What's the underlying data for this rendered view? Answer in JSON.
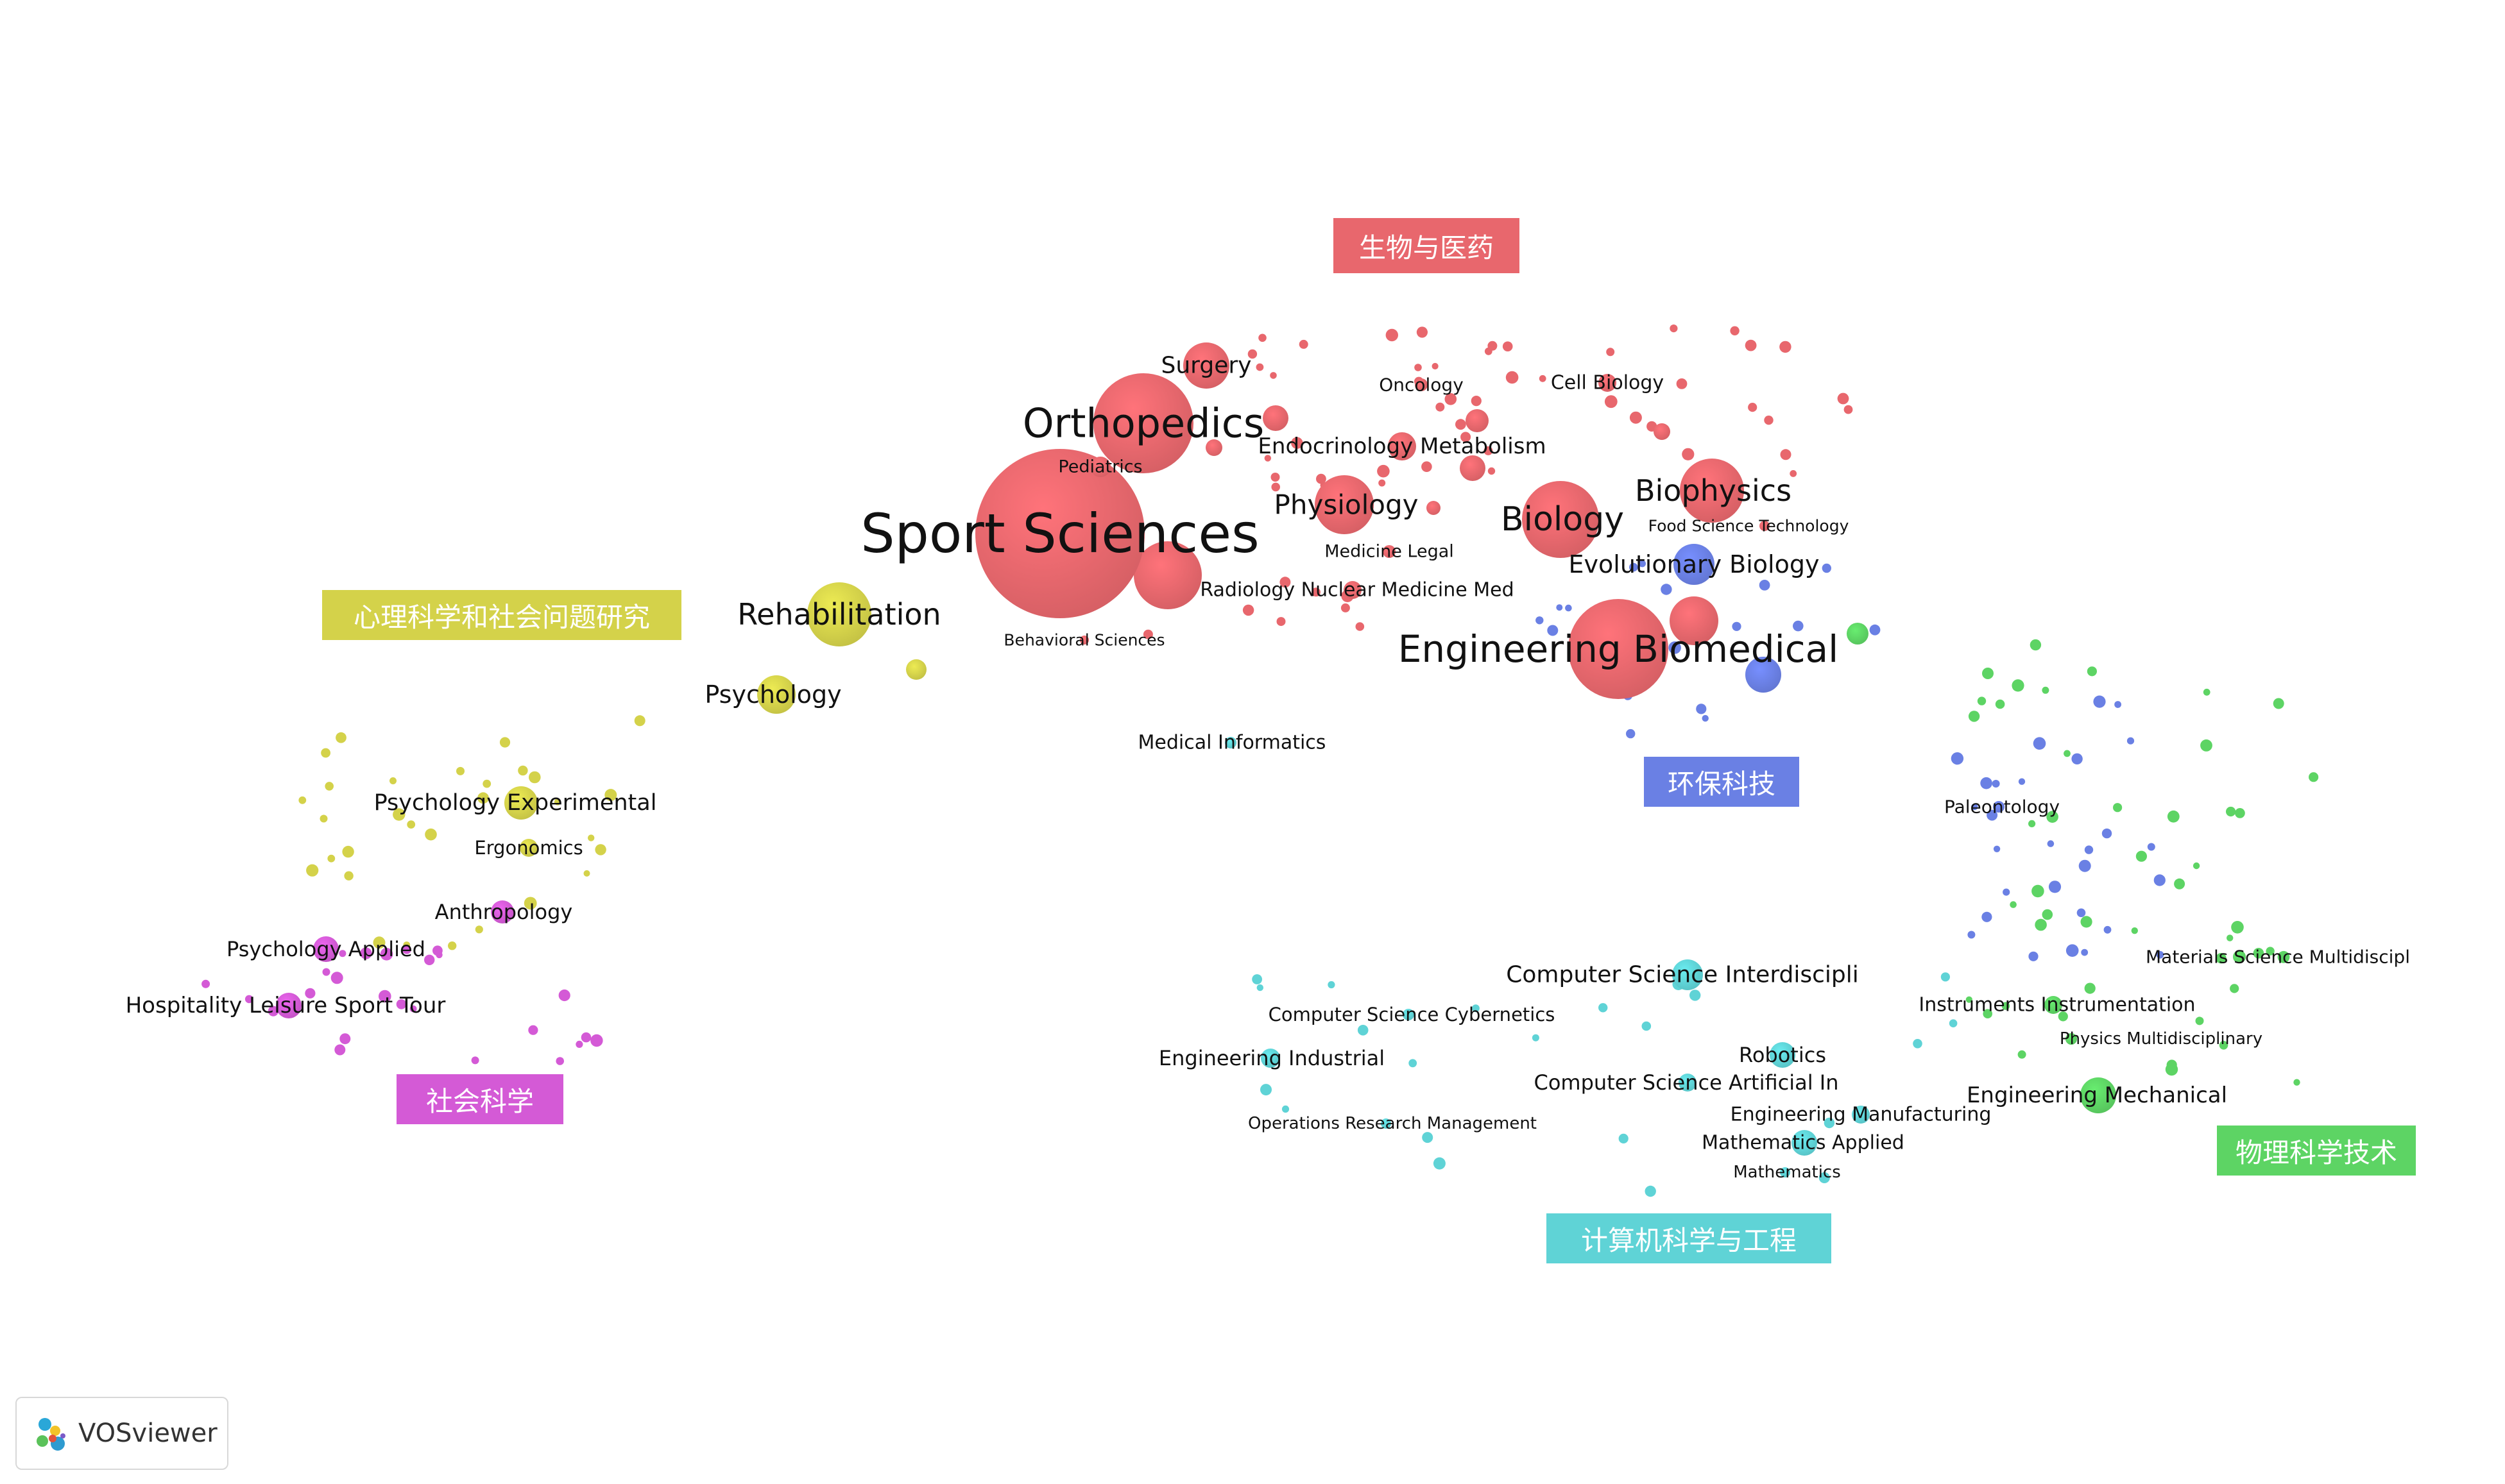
{
  "colors": {
    "red": "#e8676d",
    "yellow": "#d4d24a",
    "purple": "#d45ad6",
    "blue": "#6a80e4",
    "cyan": "#5fd3d6",
    "green": "#5dd464"
  },
  "clusters": [
    {
      "id": "bio",
      "label": "生物与医药",
      "color": "red"
    },
    {
      "id": "psy",
      "label": "心理科学和社会问题研究",
      "color": "yellow"
    },
    {
      "id": "soc",
      "label": "社会科学",
      "color": "purple"
    },
    {
      "id": "env",
      "label": "环保科技",
      "color": "blue"
    },
    {
      "id": "cs",
      "label": "计算机科学与工程",
      "color": "cyan"
    },
    {
      "id": "phy",
      "label": "物理科学技术",
      "color": "green"
    }
  ],
  "nodes": [
    {
      "label": "Sport Sciences",
      "cluster": "bio"
    },
    {
      "label": "Orthopedics",
      "cluster": "bio"
    },
    {
      "label": "Surgery",
      "cluster": "bio"
    },
    {
      "label": "Pediatrics",
      "cluster": "bio"
    },
    {
      "label": "Oncology",
      "cluster": "bio"
    },
    {
      "label": "Cell Biology",
      "cluster": "bio"
    },
    {
      "label": "Endocrinology Metabolism",
      "cluster": "bio"
    },
    {
      "label": "Physiology",
      "cluster": "bio"
    },
    {
      "label": "Biology",
      "cluster": "bio"
    },
    {
      "label": "Biophysics",
      "cluster": "bio"
    },
    {
      "label": "Food Science Technology",
      "cluster": "bio"
    },
    {
      "label": "Medicine Legal",
      "cluster": "bio"
    },
    {
      "label": "Evolutionary Biology",
      "cluster": "env"
    },
    {
      "label": "Radiology Nuclear Medicine Med",
      "cluster": "bio"
    },
    {
      "label": "Behavioral Sciences",
      "cluster": "bio"
    },
    {
      "label": "Engineering Biomedical",
      "cluster": "bio"
    },
    {
      "label": "Rehabilitation",
      "cluster": "psy"
    },
    {
      "label": "Psychology",
      "cluster": "psy"
    },
    {
      "label": "Medical Informatics",
      "cluster": "cs"
    },
    {
      "label": "Psychology Experimental",
      "cluster": "psy"
    },
    {
      "label": "Ergonomics",
      "cluster": "psy"
    },
    {
      "label": "Anthropology",
      "cluster": "soc"
    },
    {
      "label": "Psychology Applied",
      "cluster": "soc"
    },
    {
      "label": "Hospitality Leisure Sport Tour",
      "cluster": "soc"
    },
    {
      "label": "Paleontology",
      "cluster": "env"
    },
    {
      "label": "Computer Science Interdiscipli",
      "cluster": "cs"
    },
    {
      "label": "Computer Science Cybernetics",
      "cluster": "cs"
    },
    {
      "label": "Engineering Industrial",
      "cluster": "cs"
    },
    {
      "label": "Robotics",
      "cluster": "cs"
    },
    {
      "label": "Computer Science Artificial In",
      "cluster": "cs"
    },
    {
      "label": "Operations Research Management",
      "cluster": "cs"
    },
    {
      "label": "Engineering Manufacturing",
      "cluster": "cs"
    },
    {
      "label": "Mathematics Applied",
      "cluster": "cs"
    },
    {
      "label": "Mathematics",
      "cluster": "cs"
    },
    {
      "label": "Instruments Instrumentation",
      "cluster": "phy"
    },
    {
      "label": "Materials Science Multidiscipl",
      "cluster": "phy"
    },
    {
      "label": "Physics Multidisciplinary",
      "cluster": "phy"
    },
    {
      "label": "Engineering Mechanical",
      "cluster": "phy"
    }
  ],
  "logo": {
    "text": "VOSviewer",
    "icon": "vosviewer-logo-icon"
  }
}
